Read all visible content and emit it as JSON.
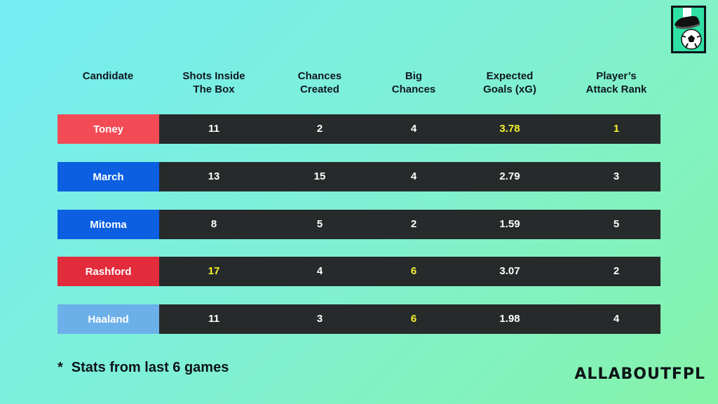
{
  "table": {
    "headers": [
      "Candidate",
      "Shots Inside\nThe Box",
      "Chances\nCreated",
      "Big\nChances",
      "Expected\nGoals (xG)",
      "Player’s\nAttack Rank"
    ],
    "rows": [
      {
        "name": "Toney",
        "color": "#f24b55",
        "values": [
          "11",
          "2",
          "4",
          "3.78",
          "1"
        ],
        "highlight": [
          false,
          false,
          false,
          true,
          true
        ]
      },
      {
        "name": "March",
        "color": "#0b5fe0",
        "values": [
          "13",
          "15",
          "4",
          "2.79",
          "3"
        ],
        "highlight": [
          false,
          false,
          false,
          false,
          false
        ]
      },
      {
        "name": "Mitoma",
        "color": "#0b5fe0",
        "values": [
          "8",
          "5",
          "2",
          "1.59",
          "5"
        ],
        "highlight": [
          false,
          false,
          false,
          false,
          false
        ]
      },
      {
        "name": "Rashford",
        "color": "#e22b3b",
        "values": [
          "17",
          "4",
          "6",
          "3.07",
          "2"
        ],
        "highlight": [
          true,
          false,
          true,
          false,
          false
        ]
      },
      {
        "name": "Haaland",
        "color": "#6cb0ea",
        "values": [
          "11",
          "3",
          "6",
          "1.98",
          "4"
        ],
        "highlight": [
          false,
          false,
          true,
          false,
          false
        ]
      }
    ],
    "highlight_color": "#f6f22f"
  },
  "chart_data": {
    "type": "table",
    "columns": [
      "Candidate",
      "Shots Inside The Box",
      "Chances Created",
      "Big Chances",
      "Expected Goals (xG)",
      "Player’s Attack Rank"
    ],
    "rows": [
      [
        "Toney",
        11,
        2,
        4,
        3.78,
        1
      ],
      [
        "March",
        13,
        15,
        4,
        2.79,
        3
      ],
      [
        "Mitoma",
        8,
        5,
        2,
        1.59,
        5
      ],
      [
        "Rashford",
        17,
        4,
        6,
        3.07,
        2
      ],
      [
        "Haaland",
        11,
        3,
        6,
        1.98,
        4
      ]
    ]
  },
  "footnote": {
    "star": "*",
    "text": "Stats from last 6 games"
  },
  "brand": {
    "name": "ALLABOUTFPL"
  },
  "logo": {
    "icon": "football-boot-ball-icon"
  }
}
